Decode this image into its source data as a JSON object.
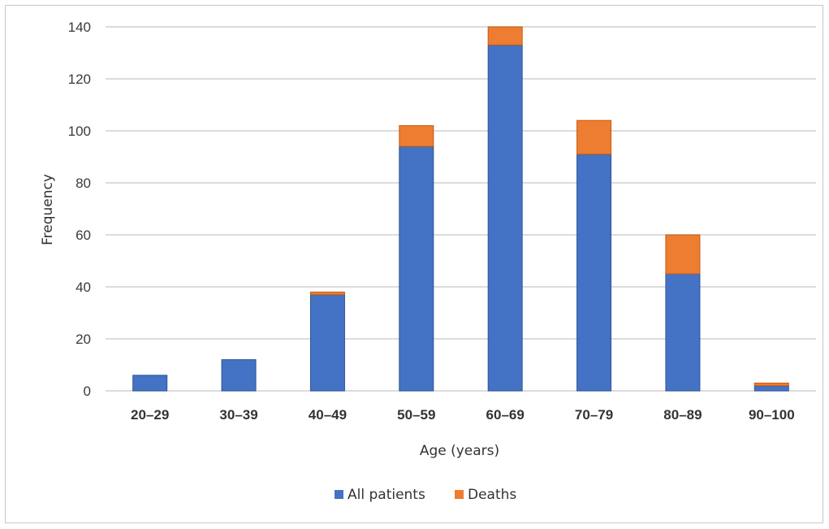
{
  "chart_data": {
    "type": "bar",
    "stacked": true,
    "categories": [
      "20–29",
      "30–39",
      "40–49",
      "50–59",
      "60–69",
      "70–79",
      "80–89",
      "90–100"
    ],
    "series": [
      {
        "name": "All patients",
        "values": [
          6,
          12,
          37,
          94,
          133,
          91,
          45,
          2
        ],
        "color": "#4472C4"
      },
      {
        "name": "Deaths",
        "values": [
          0,
          0,
          1,
          8,
          7,
          13,
          15,
          1
        ],
        "color": "#ED7D31"
      }
    ],
    "xlabel": "Age (years)",
    "ylabel": "Frequency",
    "ylim": [
      0,
      140
    ],
    "yticks": [
      0,
      20,
      40,
      60,
      80,
      100,
      120,
      140
    ],
    "grid": true,
    "legend": "bottom"
  }
}
